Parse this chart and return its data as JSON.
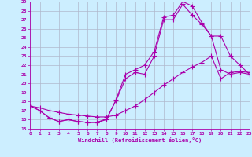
{
  "xlabel": "Windchill (Refroidissement éolien,°C)",
  "bg_color": "#cceeff",
  "grid_color": "#b0b8cc",
  "line_color": "#aa00aa",
  "xlim": [
    0,
    23
  ],
  "ylim": [
    15,
    29
  ],
  "xticks": [
    0,
    1,
    2,
    3,
    4,
    5,
    6,
    7,
    8,
    9,
    10,
    11,
    12,
    13,
    14,
    15,
    16,
    17,
    18,
    19,
    20,
    21,
    22,
    23
  ],
  "yticks": [
    15,
    16,
    17,
    18,
    19,
    20,
    21,
    22,
    23,
    24,
    25,
    26,
    27,
    28,
    29
  ],
  "line1_x": [
    0,
    1,
    2,
    3,
    4,
    5,
    6,
    7,
    8,
    9,
    10,
    11,
    12,
    13,
    14,
    15,
    16,
    17,
    18,
    19,
    20,
    21,
    22,
    23
  ],
  "line1_y": [
    17.5,
    17.0,
    16.2,
    15.8,
    16.0,
    15.8,
    15.7,
    15.7,
    16.0,
    18.2,
    21.0,
    21.5,
    22.0,
    23.5,
    27.3,
    27.5,
    29.0,
    28.5,
    26.7,
    25.2,
    21.5,
    21.0,
    21.2,
    21.0
  ],
  "line2_x": [
    0,
    1,
    2,
    3,
    4,
    5,
    6,
    7,
    8,
    9,
    10,
    11,
    12,
    13,
    14,
    15,
    16,
    17,
    18,
    19,
    20,
    21,
    22,
    23
  ],
  "line2_y": [
    17.5,
    17.0,
    16.2,
    15.8,
    16.0,
    15.8,
    15.7,
    15.7,
    16.1,
    18.1,
    20.5,
    21.2,
    21.0,
    23.0,
    27.0,
    27.0,
    28.7,
    27.5,
    26.5,
    25.2,
    25.2,
    23.0,
    22.0,
    21.0
  ],
  "line3_x": [
    0,
    1,
    2,
    3,
    4,
    5,
    6,
    7,
    8,
    9,
    10,
    11,
    12,
    13,
    14,
    15,
    16,
    17,
    18,
    19,
    20,
    21,
    22,
    23
  ],
  "line3_y": [
    17.5,
    17.3,
    17.0,
    16.8,
    16.6,
    16.5,
    16.4,
    16.3,
    16.3,
    16.5,
    17.0,
    17.5,
    18.2,
    19.0,
    19.8,
    20.5,
    21.2,
    21.8,
    22.3,
    23.0,
    20.5,
    21.2,
    21.3,
    21.2
  ]
}
